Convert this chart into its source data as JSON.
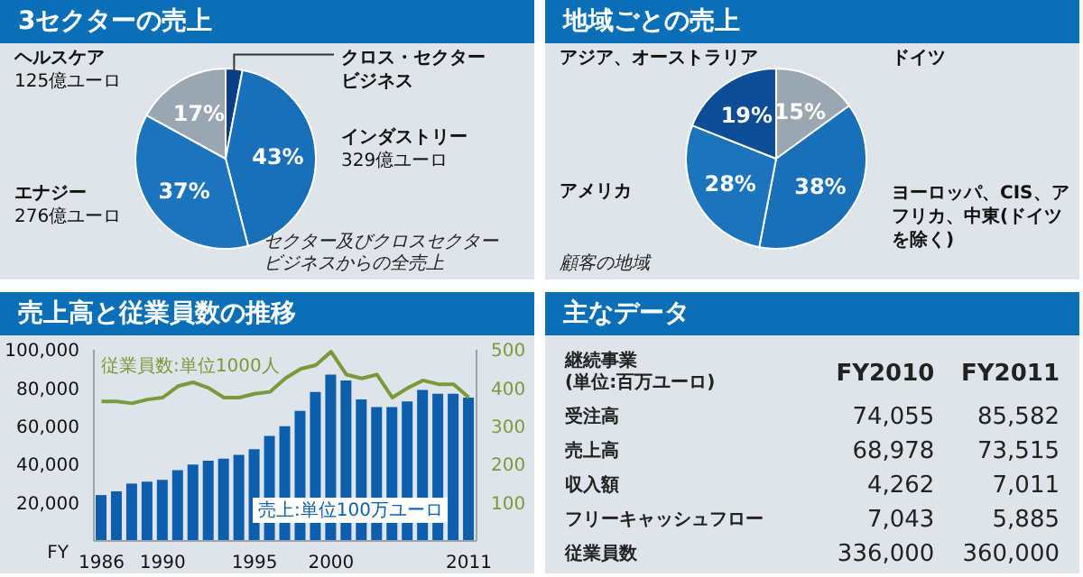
{
  "chart_data": [
    {
      "type": "pie",
      "title": "3セクターの売上",
      "categories": [
        "クロス・セクタービジネス",
        "インダストリー\n329億ユーロ",
        "エナジー\n276億ユーロ",
        "ヘルスケア\n125億ユーロ"
      ],
      "values": [
        3,
        43,
        37,
        17
      ],
      "colors": [
        "#0a3e86",
        "#1a70b8",
        "#1b74bc",
        "#9aa6b2"
      ],
      "value_labels": [
        null,
        "43%",
        "37%",
        "17%"
      ],
      "annotations": [
        "セクター及びクロスセクタービジネスからの全売上"
      ]
    },
    {
      "type": "pie",
      "title": "地域ごとの売上",
      "categories": [
        "ドイツ",
        "ヨーロッパ、CIS、アフリカ、中東(ドイツを除く)",
        "アメリカ",
        "アジア、オーストラリア"
      ],
      "values": [
        15,
        38,
        28,
        19
      ],
      "colors": [
        "#9aa6b2",
        "#1a70b8",
        "#1b74bc",
        "#0d4d96"
      ],
      "value_labels": [
        "15%",
        "38%",
        "28%",
        "19%"
      ],
      "annotations": [
        "顧客の地域"
      ]
    },
    {
      "type": "bar",
      "title": "売上高と従業員数の推移",
      "xlabel": "FY",
      "categories": [
        "1986",
        null,
        null,
        null,
        "1990",
        null,
        null,
        null,
        null,
        null,
        "1995",
        null,
        null,
        null,
        null,
        "2000",
        null,
        null,
        null,
        null,
        null,
        null,
        null,
        null,
        "2011"
      ],
      "series": [
        {
          "name": "売上:単位100万ユーロ",
          "color": "#0d5fad",
          "values": [
            24000,
            26000,
            30000,
            31000,
            32000,
            37000,
            40000,
            42000,
            43000,
            45000,
            48000,
            55000,
            60000,
            68000,
            78000,
            87000,
            84000,
            74000,
            70000,
            70000,
            73000,
            79000,
            77000,
            77000,
            75000
          ]
        },
        {
          "name": "従業員数:単位1000人",
          "type": "line",
          "axis": "y2",
          "color": "#7a9a3a",
          "values": [
            365,
            365,
            360,
            370,
            375,
            405,
            415,
            400,
            375,
            375,
            385,
            390,
            425,
            450,
            460,
            495,
            435,
            425,
            435,
            375,
            400,
            420,
            410,
            410,
            375
          ]
        }
      ],
      "ylim": [
        0,
        100000
      ],
      "yticks": [
        {
          "value": 20000,
          "label": "20,000"
        },
        {
          "value": 40000,
          "label": "40,000"
        },
        {
          "value": 60000,
          "label": "60,000"
        },
        {
          "value": 80000,
          "label": "80,000"
        },
        {
          "value": 100000,
          "label": "100,000"
        }
      ],
      "y2lim": [
        0,
        500
      ],
      "y2ticks": [
        100,
        200,
        300,
        400,
        500
      ]
    },
    {
      "type": "other",
      "title": "主なデータ",
      "annotations": [
        "継続事業\n(単位:百万ユーロ)",
        "FY2010",
        "FY2011",
        "受注高",
        "74,055",
        "85,582",
        "売上高",
        "68,978",
        "73,515",
        "収入額",
        "4,262",
        "7,011",
        "フリーキャッシュフロー",
        "7,043",
        "5,885",
        "従業員数",
        "336,000",
        "360,000"
      ]
    }
  ]
}
